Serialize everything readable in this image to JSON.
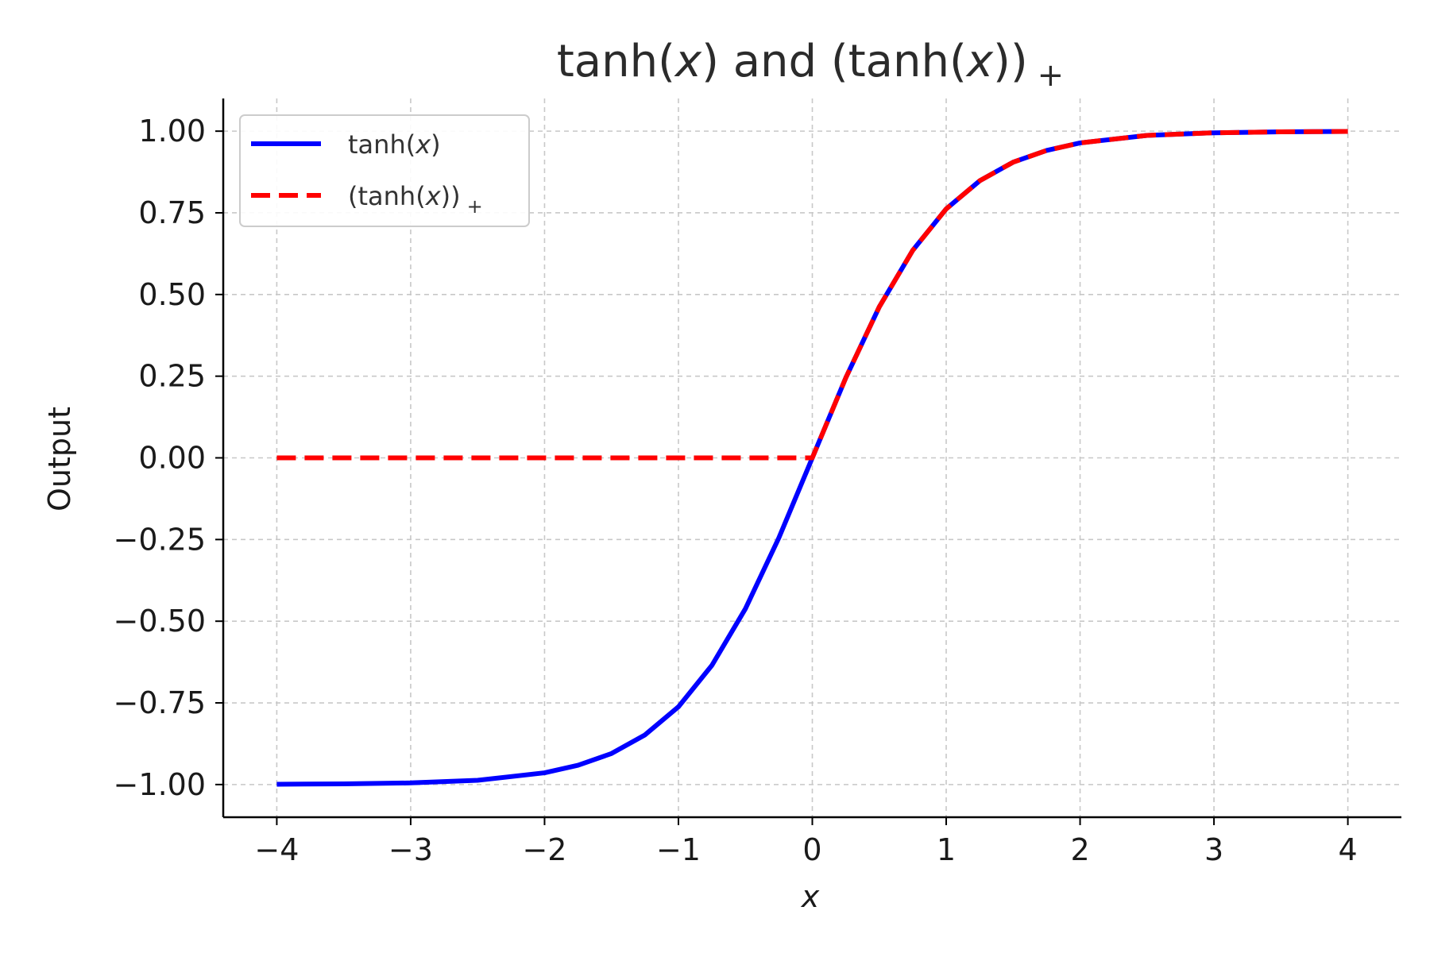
{
  "chart_data": {
    "type": "line",
    "title": "tanh(x) and (tanh(x))+",
    "title_parts": {
      "main": "tanh(",
      "var": "x",
      "mid": ") and (tanh(",
      "var2": "x",
      "end": "))",
      "sub": "+"
    },
    "xlabel": "x",
    "ylabel": "Output",
    "xlim": [
      -4.4,
      4.4
    ],
    "ylim": [
      -1.1,
      1.1
    ],
    "x_ticks": [
      -4,
      -3,
      -2,
      -1,
      0,
      1,
      2,
      3,
      4
    ],
    "x_tick_labels": [
      "−4",
      "−3",
      "−2",
      "−1",
      "0",
      "1",
      "2",
      "3",
      "4"
    ],
    "y_ticks": [
      1.0,
      0.75,
      0.5,
      0.25,
      0.0,
      -0.25,
      -0.5,
      -0.75,
      -1.0
    ],
    "y_tick_labels": [
      "1.00",
      "0.75",
      "0.50",
      "0.25",
      "0.00",
      "−0.25",
      "−0.50",
      "−0.75",
      "−1.00"
    ],
    "grid": true,
    "legend_position": "top-left",
    "series": [
      {
        "name": "tanh(x)",
        "legend_parts": {
          "pre": "tanh(",
          "var": "x",
          "post": ")",
          "sub": ""
        },
        "color": "#0000ff",
        "style": "solid",
        "x": [
          -4,
          -3.5,
          -3,
          -2.5,
          -2,
          -1.75,
          -1.5,
          -1.25,
          -1,
          -0.75,
          -0.5,
          -0.25,
          0,
          0.25,
          0.5,
          0.75,
          1,
          1.25,
          1.5,
          1.75,
          2,
          2.5,
          3,
          3.5,
          4
        ],
        "y": [
          -0.999,
          -0.998,
          -0.995,
          -0.987,
          -0.964,
          -0.941,
          -0.905,
          -0.848,
          -0.762,
          -0.635,
          -0.462,
          -0.245,
          0.0,
          0.245,
          0.462,
          0.635,
          0.762,
          0.848,
          0.905,
          0.941,
          0.964,
          0.987,
          0.995,
          0.998,
          0.999
        ]
      },
      {
        "name": "(tanh(x))+",
        "legend_parts": {
          "pre": "(tanh(",
          "var": "x",
          "post": "))",
          "sub": "+"
        },
        "color": "#ff0000",
        "style": "dashed",
        "x": [
          -4,
          -3.5,
          -3,
          -2.5,
          -2,
          -1.75,
          -1.5,
          -1.25,
          -1,
          -0.75,
          -0.5,
          -0.25,
          0,
          0.25,
          0.5,
          0.75,
          1,
          1.25,
          1.5,
          1.75,
          2,
          2.5,
          3,
          3.5,
          4
        ],
        "y": [
          0.0,
          0.0,
          0.0,
          0.0,
          0.0,
          0.0,
          0.0,
          0.0,
          0.0,
          0.0,
          0.0,
          0.0,
          0.0,
          0.245,
          0.462,
          0.635,
          0.762,
          0.848,
          0.905,
          0.941,
          0.964,
          0.987,
          0.995,
          0.998,
          0.999
        ]
      }
    ]
  }
}
